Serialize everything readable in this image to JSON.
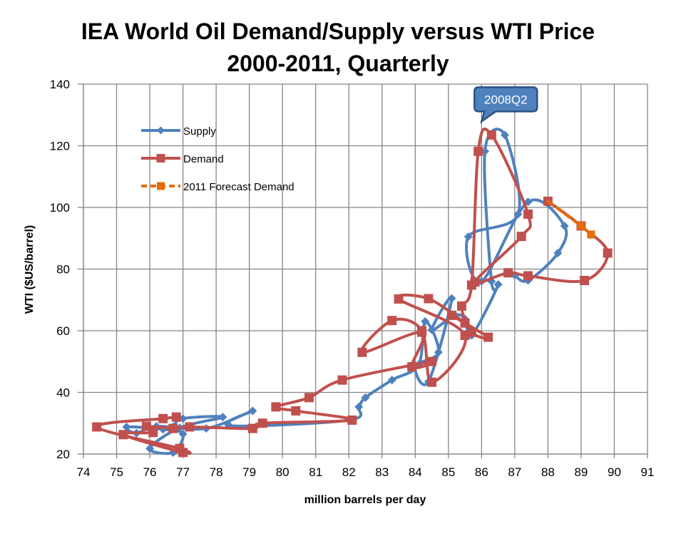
{
  "chart_data": {
    "type": "line",
    "title": [
      "IEA World Oil Demand/Supply versus WTI Price",
      "2000-2011, Quarterly"
    ],
    "xlabel": "million barrels per day",
    "ylabel": "WTI ($US/barrel)",
    "xlim": [
      74,
      91
    ],
    "ylim": [
      20,
      140
    ],
    "xticks": [
      74,
      75,
      76,
      77,
      78,
      79,
      80,
      81,
      82,
      83,
      84,
      85,
      86,
      87,
      88,
      89,
      90,
      91
    ],
    "yticks": [
      20,
      40,
      60,
      80,
      100,
      120,
      140
    ],
    "grid": true,
    "legend_position": "top-left",
    "annotation": {
      "text": "2008Q2",
      "x": 86.3,
      "y": 123.5
    },
    "series": [
      {
        "name": "Supply",
        "color": "#4F81BD",
        "marker": "diamond",
        "dash": false,
        "points": [
          [
            76.7,
            28.8
          ],
          [
            77.0,
            31.5
          ],
          [
            78.2,
            32.0
          ],
          [
            76.9,
            28.5
          ],
          [
            76.0,
            21.8
          ],
          [
            76.7,
            20.5
          ],
          [
            77.0,
            26.5
          ],
          [
            76.4,
            28.0
          ],
          [
            75.3,
            28.8
          ],
          [
            75.6,
            26.8
          ],
          [
            76.2,
            29.0
          ],
          [
            77.7,
            28.3
          ],
          [
            79.1,
            34.0
          ],
          [
            78.4,
            29.2
          ],
          [
            82.0,
            31.0
          ],
          [
            82.3,
            35.3
          ],
          [
            82.5,
            38.3
          ],
          [
            83.3,
            44.0
          ],
          [
            84.1,
            49.0
          ],
          [
            84.3,
            63.0
          ],
          [
            84.7,
            53.0
          ],
          [
            84.0,
            48.5
          ],
          [
            84.4,
            43.5
          ],
          [
            85.1,
            70.5
          ],
          [
            84.5,
            60.3
          ],
          [
            85.2,
            65.0
          ],
          [
            85.5,
            63.8
          ],
          [
            85.7,
            58.5
          ],
          [
            86.5,
            75.0
          ],
          [
            86.3,
            76.0
          ],
          [
            86.1,
            118.2
          ],
          [
            86.7,
            123.5
          ],
          [
            87.1,
            97.8
          ],
          [
            85.6,
            90.5
          ],
          [
            86.0,
            76.0
          ],
          [
            87.4,
            101.8
          ],
          [
            88.5,
            94.0
          ],
          [
            88.3,
            85.2
          ],
          [
            87.4,
            76.3
          ],
          [
            87.0,
            78.0
          ]
        ]
      },
      {
        "name": "Demand",
        "color": "#C0504D",
        "marker": "square",
        "dash": false,
        "points": [
          [
            76.8,
            32.0
          ],
          [
            76.4,
            31.5
          ],
          [
            74.4,
            28.8
          ],
          [
            76.9,
            21.8
          ],
          [
            77.0,
            20.5
          ],
          [
            75.2,
            26.3
          ],
          [
            76.1,
            27.0
          ],
          [
            75.9,
            29.0
          ],
          [
            76.7,
            28.3
          ],
          [
            77.2,
            28.8
          ],
          [
            79.1,
            28.3
          ],
          [
            79.4,
            30.0
          ],
          [
            82.1,
            31.0
          ],
          [
            80.4,
            34.0
          ],
          [
            79.8,
            35.3
          ],
          [
            80.8,
            38.3
          ],
          [
            81.8,
            44.0
          ],
          [
            84.5,
            50.0
          ],
          [
            83.9,
            48.3
          ],
          [
            84.2,
            59.5
          ],
          [
            82.4,
            53.0
          ],
          [
            83.3,
            63.3
          ],
          [
            84.2,
            60.0
          ],
          [
            84.5,
            43.3
          ],
          [
            85.5,
            58.5
          ],
          [
            83.5,
            70.3
          ],
          [
            84.4,
            70.4
          ],
          [
            85.5,
            62.5
          ],
          [
            85.1,
            65.0
          ],
          [
            86.2,
            57.9
          ],
          [
            85.7,
            59.5
          ],
          [
            85.4,
            68.0
          ],
          [
            85.7,
            74.8
          ],
          [
            85.9,
            118.2
          ],
          [
            86.3,
            123.5
          ],
          [
            87.4,
            97.8
          ],
          [
            87.2,
            90.6
          ],
          [
            85.8,
            75.8
          ],
          [
            86.8,
            78.8
          ],
          [
            87.4,
            77.8
          ],
          [
            89.1,
            76.3
          ],
          [
            89.8,
            85.2
          ],
          [
            89.0,
            94.0
          ],
          [
            88.0,
            102.0
          ]
        ]
      },
      {
        "name": "2011 Forecast Demand",
        "color": "#E46C0A",
        "marker": "square",
        "dash": true,
        "points": [
          [
            88.0,
            102.0
          ],
          [
            89.0,
            94.0
          ],
          [
            89.3,
            91.2
          ]
        ]
      }
    ]
  }
}
